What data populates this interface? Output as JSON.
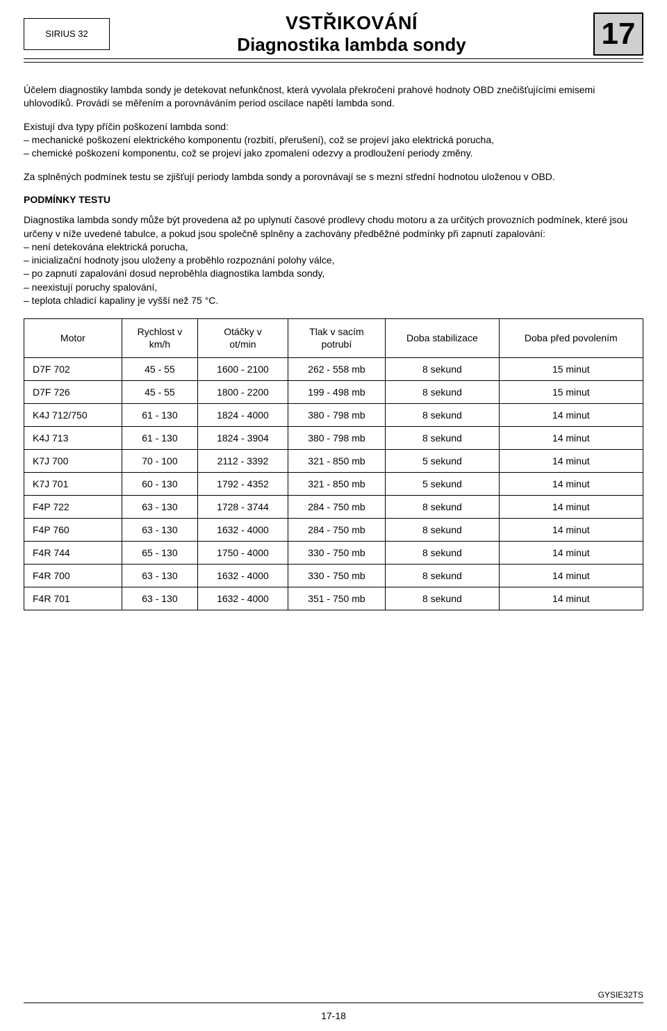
{
  "header": {
    "sirius": "SIRIUS 32",
    "title1": "VSTŘIKOVÁNÍ",
    "title2": "Diagnostika lambda sondy",
    "chapter": "17"
  },
  "body": {
    "p1": "Účelem diagnostiky lambda sondy je detekovat nefunkčnost, která vyvolala překročení prahové hodnoty OBD znečišťujícími emisemi uhlovodíků. Provádí se měřením a porovnáváním period oscilace napětí lambda sond.",
    "p2a": "Existují dva typy příčin poškození lambda sond:",
    "p2_b1": "– mechanické poškození elektrického komponentu (rozbití, přerušení), což se projeví jako elektrická porucha,",
    "p2_b2": "– chemické poškození komponentu, což se projeví jako zpomalení odezvy a prodloužení periody změny.",
    "p3": "Za splněných podmínek testu se zjišťují periody lambda sondy a porovnávají se s mezní střední hodnotou uloženou v OBD.",
    "section_head": "PODMÍNKY TESTU",
    "p4a": "Diagnostika lambda sondy může být provedena až po uplynutí časové prodlevy chodu motoru a za určitých provozních podmínek, které jsou určeny v níže uvedené tabulce, a pokud jsou společně splněny a zachovány předběžné podmínky při zapnutí zapalování:",
    "p4_b1": "– není detekována elektrická porucha,",
    "p4_b2": "– inicializační hodnoty jsou uloženy a proběhlo rozpoznání polohy válce,",
    "p4_b3": "– po zapnutí zapalování dosud neproběhla diagnostika lambda sondy,",
    "p4_b4": "– neexistují poruchy spalování,",
    "p4_b5": "– teplota chladicí kapaliny je vyšší než 75 °C."
  },
  "table": {
    "headers": {
      "motor": "Motor",
      "speed": "Rychlost v\nkm/h",
      "rpm": "Otáčky v\not/min",
      "pressure": "Tlak v sacím\npotrubí",
      "stab": "Doba stabilizace",
      "allow": "Doba před povolením"
    },
    "rows": [
      {
        "motor": "D7F 702",
        "speed": "45 - 55",
        "rpm": "1600 - 2100",
        "pressure": "262 - 558 mb",
        "stab": "8 sekund",
        "allow": "15 minut"
      },
      {
        "motor": "D7F 726",
        "speed": "45 - 55",
        "rpm": "1800 - 2200",
        "pressure": "199 - 498 mb",
        "stab": "8 sekund",
        "allow": "15 minut"
      },
      {
        "motor": "K4J 712/750",
        "speed": "61 - 130",
        "rpm": "1824 - 4000",
        "pressure": "380 - 798 mb",
        "stab": "8 sekund",
        "allow": "14 minut"
      },
      {
        "motor": "K4J 713",
        "speed": "61 - 130",
        "rpm": "1824 - 3904",
        "pressure": "380 - 798 mb",
        "stab": "8 sekund",
        "allow": "14 minut"
      },
      {
        "motor": "K7J 700",
        "speed": "70 - 100",
        "rpm": "2112 - 3392",
        "pressure": "321 - 850 mb",
        "stab": "5 sekund",
        "allow": "14 minut"
      },
      {
        "motor": "K7J 701",
        "speed": "60 - 130",
        "rpm": "1792 - 4352",
        "pressure": "321 - 850 mb",
        "stab": "5 sekund",
        "allow": "14 minut"
      },
      {
        "motor": "F4P 722",
        "speed": "63 - 130",
        "rpm": "1728 - 3744",
        "pressure": "284 - 750 mb",
        "stab": "8 sekund",
        "allow": "14 minut"
      },
      {
        "motor": "F4P 760",
        "speed": "63 - 130",
        "rpm": "1632 - 4000",
        "pressure": "284 - 750 mb",
        "stab": "8 sekund",
        "allow": "14 minut"
      },
      {
        "motor": "F4R 744",
        "speed": "65 - 130",
        "rpm": "1750 - 4000",
        "pressure": "330 - 750 mb",
        "stab": "8 sekund",
        "allow": "14 minut"
      },
      {
        "motor": "F4R 700",
        "speed": "63 - 130",
        "rpm": "1632 - 4000",
        "pressure": "330 - 750 mb",
        "stab": "8 sekund",
        "allow": "14 minut"
      },
      {
        "motor": "F4R 701",
        "speed": "63 - 130",
        "rpm": "1632 - 4000",
        "pressure": "351 - 750 mb",
        "stab": "8 sekund",
        "allow": "14 minut"
      }
    ]
  },
  "footer": {
    "page_num": "17-18",
    "doc_code": "GYSIE32TS"
  }
}
